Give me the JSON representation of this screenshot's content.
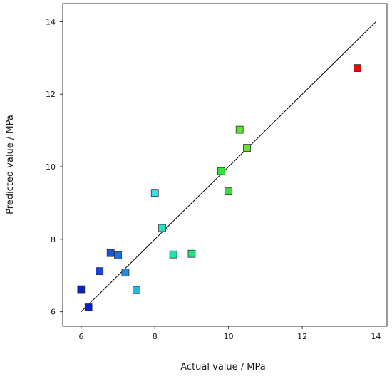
{
  "chart_data": {
    "type": "scatter",
    "title": "",
    "xlabel": "Actual value / MPa",
    "ylabel": "Predicted value / MPa",
    "xlim": [
      5.5,
      14.3
    ],
    "ylim": [
      5.6,
      14.5
    ],
    "xticks": [
      6,
      8,
      10,
      12,
      14
    ],
    "yticks": [
      6,
      8,
      10,
      12,
      14
    ],
    "xtick_labels": [
      "6",
      "8",
      "10",
      "12",
      "14"
    ],
    "ytick_labels": [
      "6",
      "8",
      "10",
      "12",
      "14"
    ],
    "grid": false,
    "legend": "none",
    "reference_line": {
      "x": [
        6.0,
        14.0
      ],
      "y": [
        6.0,
        14.0
      ],
      "color": "#000000"
    },
    "points": [
      {
        "x": 6.0,
        "y": 6.62,
        "color": "#0a1fc4"
      },
      {
        "x": 6.2,
        "y": 6.12,
        "color": "#0a1fc4"
      },
      {
        "x": 6.5,
        "y": 7.12,
        "color": "#1a45dc"
      },
      {
        "x": 6.8,
        "y": 7.62,
        "color": "#1a55e0"
      },
      {
        "x": 7.0,
        "y": 7.56,
        "color": "#1f70e4"
      },
      {
        "x": 7.2,
        "y": 7.08,
        "color": "#1f8ce6"
      },
      {
        "x": 7.5,
        "y": 6.6,
        "color": "#25b8ea"
      },
      {
        "x": 8.0,
        "y": 9.28,
        "color": "#35dde6"
      },
      {
        "x": 8.2,
        "y": 8.31,
        "color": "#25e0c0"
      },
      {
        "x": 8.5,
        "y": 7.58,
        "color": "#25e0a8"
      },
      {
        "x": 9.0,
        "y": 7.6,
        "color": "#25e080"
      },
      {
        "x": 9.8,
        "y": 9.88,
        "color": "#35e040"
      },
      {
        "x": 10.0,
        "y": 9.32,
        "color": "#35e040"
      },
      {
        "x": 10.3,
        "y": 11.02,
        "color": "#5ae030"
      },
      {
        "x": 10.5,
        "y": 10.52,
        "color": "#6ae030"
      },
      {
        "x": 13.5,
        "y": 12.72,
        "color": "#e01010"
      }
    ]
  }
}
